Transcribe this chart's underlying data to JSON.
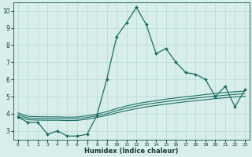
{
  "xlabel": "Humidex (Indice chaleur)",
  "bg_color": "#d8eeeb",
  "grid_color": "#b8d8d4",
  "line_color": "#1a6e64",
  "xlim": [
    -0.5,
    23.5
  ],
  "ylim": [
    2.5,
    10.5
  ],
  "xticks": [
    0,
    1,
    2,
    3,
    4,
    5,
    6,
    7,
    8,
    9,
    10,
    11,
    12,
    13,
    14,
    15,
    16,
    17,
    18,
    19,
    20,
    21,
    22,
    23
  ],
  "yticks": [
    3,
    4,
    5,
    6,
    7,
    8,
    9,
    10
  ],
  "main_x": [
    0,
    1,
    2,
    3,
    4,
    5,
    6,
    7,
    8,
    9,
    10,
    11,
    12,
    13,
    14,
    15,
    16,
    17,
    18,
    19,
    20,
    21,
    22,
    23
  ],
  "main_y": [
    3.8,
    3.5,
    3.5,
    2.8,
    3.0,
    2.7,
    2.7,
    2.8,
    3.9,
    6.0,
    8.5,
    9.3,
    10.2,
    9.2,
    7.5,
    7.8,
    7.0,
    6.4,
    6.3,
    6.0,
    5.0,
    5.6,
    4.4,
    5.4
  ],
  "line2_x": [
    0,
    1,
    2,
    3,
    4,
    5,
    6,
    7,
    8,
    9,
    10,
    11,
    12,
    13,
    14,
    15,
    16,
    17,
    18,
    19,
    20,
    21,
    22,
    23
  ],
  "line2_y": [
    3.85,
    3.65,
    3.63,
    3.62,
    3.62,
    3.6,
    3.61,
    3.68,
    3.78,
    3.9,
    4.05,
    4.18,
    4.3,
    4.4,
    4.48,
    4.56,
    4.63,
    4.7,
    4.76,
    4.82,
    4.88,
    4.93,
    4.98,
    5.02
  ],
  "line3_x": [
    0,
    1,
    2,
    3,
    4,
    5,
    6,
    7,
    8,
    9,
    10,
    11,
    12,
    13,
    14,
    15,
    16,
    17,
    18,
    19,
    20,
    21,
    22,
    23
  ],
  "line3_y": [
    3.95,
    3.75,
    3.73,
    3.72,
    3.72,
    3.7,
    3.71,
    3.78,
    3.88,
    4.0,
    4.18,
    4.32,
    4.45,
    4.55,
    4.63,
    4.71,
    4.78,
    4.85,
    4.91,
    4.97,
    5.03,
    5.08,
    5.13,
    5.17
  ],
  "line4_x": [
    0,
    1,
    2,
    3,
    4,
    5,
    6,
    7,
    8,
    9,
    10,
    11,
    12,
    13,
    14,
    15,
    16,
    17,
    18,
    19,
    20,
    21,
    22,
    23
  ],
  "line4_y": [
    4.05,
    3.85,
    3.83,
    3.82,
    3.82,
    3.8,
    3.81,
    3.88,
    3.98,
    4.12,
    4.3,
    4.45,
    4.58,
    4.68,
    4.76,
    4.85,
    4.92,
    4.99,
    5.05,
    5.12,
    5.18,
    5.24,
    5.28,
    5.32
  ]
}
